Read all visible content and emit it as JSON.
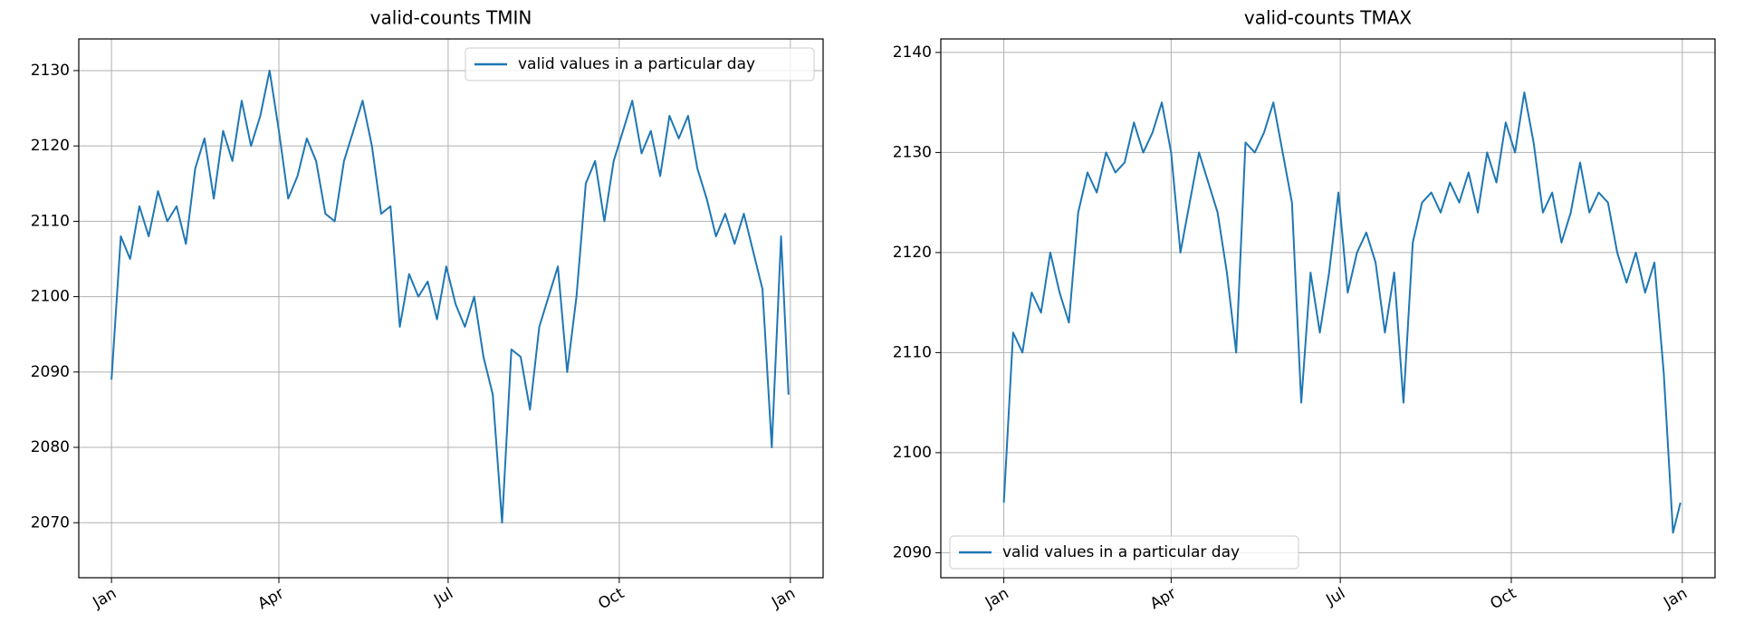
{
  "chart_data": [
    {
      "type": "line",
      "title": "valid-counts TMIN",
      "x": [
        0,
        5,
        10,
        15,
        20,
        25,
        30,
        35,
        40,
        45,
        50,
        55,
        60,
        65,
        70,
        75,
        80,
        85,
        90,
        95,
        100,
        105,
        110,
        115,
        120,
        125,
        130,
        135,
        140,
        145,
        150,
        155,
        160,
        165,
        170,
        175,
        180,
        185,
        190,
        195,
        200,
        205,
        210,
        215,
        220,
        225,
        230,
        235,
        240,
        245,
        250,
        255,
        260,
        265,
        270,
        275,
        280,
        285,
        290,
        295,
        300,
        305,
        310,
        315,
        320,
        325,
        330,
        335,
        340,
        345,
        350,
        355,
        360,
        364
      ],
      "series": [
        {
          "name": "valid values in a particular day",
          "color": "#1f77b4",
          "values": [
            2089,
            2108,
            2105,
            2112,
            2108,
            2114,
            2110,
            2112,
            2107,
            2117,
            2121,
            2113,
            2122,
            2118,
            2126,
            2120,
            2124,
            2130,
            2122,
            2113,
            2116,
            2121,
            2118,
            2111,
            2110,
            2118,
            2122,
            2126,
            2120,
            2111,
            2112,
            2096,
            2103,
            2100,
            2102,
            2097,
            2104,
            2099,
            2096,
            2100,
            2092,
            2087,
            2070,
            2093,
            2092,
            2085,
            2096,
            2100,
            2104,
            2090,
            2100,
            2115,
            2118,
            2110,
            2118,
            2122,
            2126,
            2119,
            2122,
            2116,
            2124,
            2121,
            2124,
            2117,
            2113,
            2108,
            2111,
            2107,
            2111,
            2106,
            2101,
            2080,
            2108,
            2087
          ]
        }
      ],
      "xlim": [
        -17.6,
        382.6
      ],
      "xticks": [
        {
          "value": 0,
          "label": "Jan"
        },
        {
          "value": 90,
          "label": "Apr"
        },
        {
          "value": 181,
          "label": "Jul"
        },
        {
          "value": 273,
          "label": "Oct"
        },
        {
          "value": 365,
          "label": "Jan"
        }
      ],
      "ylim": [
        2062.7,
        2134.2
      ],
      "yticks": [
        2070,
        2080,
        2090,
        2100,
        2110,
        2120,
        2130
      ],
      "grid": true,
      "legend": "upper-right"
    },
    {
      "type": "line",
      "title": "valid-counts TMAX",
      "x": [
        0,
        5,
        10,
        15,
        20,
        25,
        30,
        35,
        40,
        45,
        50,
        55,
        60,
        65,
        70,
        75,
        80,
        85,
        90,
        95,
        100,
        105,
        110,
        115,
        120,
        125,
        130,
        135,
        140,
        145,
        150,
        155,
        160,
        165,
        170,
        175,
        180,
        185,
        190,
        195,
        200,
        205,
        210,
        215,
        220,
        225,
        230,
        235,
        240,
        245,
        250,
        255,
        260,
        265,
        270,
        275,
        280,
        285,
        290,
        295,
        300,
        305,
        310,
        315,
        320,
        325,
        330,
        335,
        340,
        345,
        350,
        355,
        360,
        364
      ],
      "series": [
        {
          "name": "valid values in a particular day",
          "color": "#1f77b4",
          "values": [
            2095,
            2112,
            2110,
            2116,
            2114,
            2120,
            2116,
            2113,
            2124,
            2128,
            2126,
            2130,
            2128,
            2129,
            2133,
            2130,
            2132,
            2135,
            2130,
            2120,
            2125,
            2130,
            2127,
            2124,
            2118,
            2110,
            2131,
            2130,
            2132,
            2135,
            2130,
            2125,
            2105,
            2118,
            2112,
            2118,
            2126,
            2116,
            2120,
            2122,
            2119,
            2112,
            2118,
            2105,
            2121,
            2125,
            2126,
            2124,
            2127,
            2125,
            2128,
            2124,
            2130,
            2127,
            2133,
            2130,
            2136,
            2131,
            2124,
            2126,
            2121,
            2124,
            2129,
            2124,
            2126,
            2125,
            2120,
            2117,
            2120,
            2116,
            2119,
            2108,
            2092,
            2095
          ]
        }
      ],
      "xlim": [
        -33.9,
        382.6
      ],
      "xticks": [
        {
          "value": 0,
          "label": "Jan"
        },
        {
          "value": 90,
          "label": "Apr"
        },
        {
          "value": 181,
          "label": "Jul"
        },
        {
          "value": 273,
          "label": "Oct"
        },
        {
          "value": 365,
          "label": "Jan"
        }
      ],
      "ylim": [
        2087.5,
        2141.35
      ],
      "yticks": [
        2090,
        2100,
        2110,
        2120,
        2130,
        2140
      ],
      "grid": true,
      "legend": "lower-left"
    }
  ]
}
